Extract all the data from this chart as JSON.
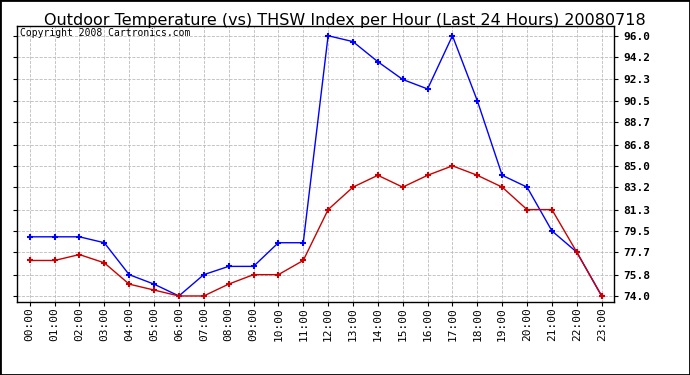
{
  "title": "Outdoor Temperature (vs) THSW Index per Hour (Last 24 Hours) 20080718",
  "copyright": "Copyright 2008 Cartronics.com",
  "hours": [
    "00:00",
    "01:00",
    "02:00",
    "03:00",
    "04:00",
    "05:00",
    "06:00",
    "07:00",
    "08:00",
    "09:00",
    "10:00",
    "11:00",
    "12:00",
    "13:00",
    "14:00",
    "15:00",
    "16:00",
    "17:00",
    "18:00",
    "19:00",
    "20:00",
    "21:00",
    "22:00",
    "23:00"
  ],
  "thsw": [
    79.0,
    79.0,
    79.0,
    78.5,
    75.8,
    75.0,
    74.0,
    75.8,
    76.5,
    76.5,
    78.5,
    78.5,
    96.0,
    95.5,
    93.8,
    92.3,
    91.5,
    96.0,
    90.5,
    84.2,
    83.2,
    79.5,
    77.7,
    74.0
  ],
  "temp": [
    77.0,
    77.0,
    77.5,
    76.8,
    75.0,
    74.5,
    74.0,
    74.0,
    75.0,
    75.8,
    75.8,
    77.0,
    81.3,
    83.2,
    84.2,
    83.2,
    84.2,
    85.0,
    84.2,
    83.2,
    81.3,
    81.3,
    77.7,
    74.0
  ],
  "ylim_min": 73.5,
  "ylim_max": 96.8,
  "yticks": [
    74.0,
    75.8,
    77.7,
    79.5,
    81.3,
    83.2,
    85.0,
    86.8,
    88.7,
    90.5,
    92.3,
    94.2,
    96.0
  ],
  "blue_color": "#0000FF",
  "red_color": "#CC0000",
  "bg_color": "#FFFFFF",
  "grid_color": "#BBBBBB",
  "title_fontsize": 11.5,
  "copyright_fontsize": 7,
  "tick_fontsize": 8,
  "outer_border_color": "#000000"
}
